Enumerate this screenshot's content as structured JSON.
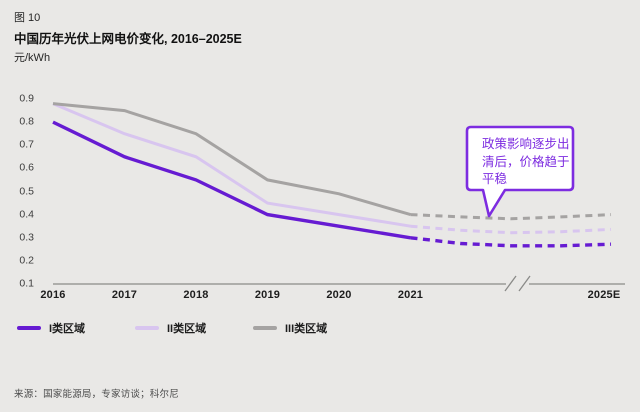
{
  "header": {
    "figure_label": "图 10",
    "title": "中国历年光伏上网电价变化, 2016–2025E",
    "unit": "元/kWh"
  },
  "callout": {
    "lines": [
      "政策影响逐步出",
      "清后，价格趋于",
      "平稳"
    ],
    "full_text": "政策影响逐步出清后，价格趋于平稳",
    "border_color": "#7d2ce0",
    "text_color": "#7d2ce0",
    "fill_color": "#ffffff"
  },
  "legend": {
    "items": [
      {
        "label": "I类区域",
        "color": "#661bd2"
      },
      {
        "label": "II类区域",
        "color": "#d8c5ef"
      },
      {
        "label": "III类区域",
        "color": "#a5a3a2"
      }
    ]
  },
  "source": "来源：国家能源局，专家访谈；科尔尼",
  "chart_data": {
    "type": "line",
    "title": "中国历年光伏上网电价变化, 2016–2025E",
    "ylabel": "元/kWh",
    "ylim": [
      0.1,
      0.9
    ],
    "y_ticks": [
      "0.9",
      "0.8",
      "0.7",
      "0.6",
      "0.5",
      "0.4",
      "0.3",
      "0.2",
      "0.1"
    ],
    "x_ticks": [
      "2016",
      "2017",
      "2018",
      "2019",
      "2020",
      "2021"
    ],
    "projection_end_label": "2025E",
    "axis_break_between": [
      "2021",
      "2025E"
    ],
    "grid": false,
    "legend_position": "bottom-left",
    "annotation": "政策影响逐步出清后，价格趋于平稳",
    "series": [
      {
        "name": "I类区域",
        "color": "#661bd2",
        "style": "solid, dashed after 2021 (projection)",
        "values": [
          0.8,
          0.65,
          0.55,
          0.4,
          0.35,
          0.3
        ],
        "projection_values": [
          0.3,
          0.275,
          0.265,
          0.265,
          0.272
        ],
        "value_2025E": 0.27
      },
      {
        "name": "II类区域",
        "color": "#d8c5ef",
        "style": "solid, dashed after 2021 (projection)",
        "values": [
          0.88,
          0.75,
          0.65,
          0.45,
          0.4,
          0.35
        ],
        "projection_values": [
          0.35,
          0.332,
          0.322,
          0.326,
          0.336
        ],
        "value_2025E": 0.34
      },
      {
        "name": "III类区域",
        "color": "#a5a3a2",
        "style": "solid, dashed after 2021 (projection)",
        "values": [
          0.88,
          0.85,
          0.75,
          0.55,
          0.49,
          0.4
        ],
        "projection_values": [
          0.4,
          0.39,
          0.382,
          0.39,
          0.4
        ],
        "value_2025E": 0.4
      }
    ]
  }
}
